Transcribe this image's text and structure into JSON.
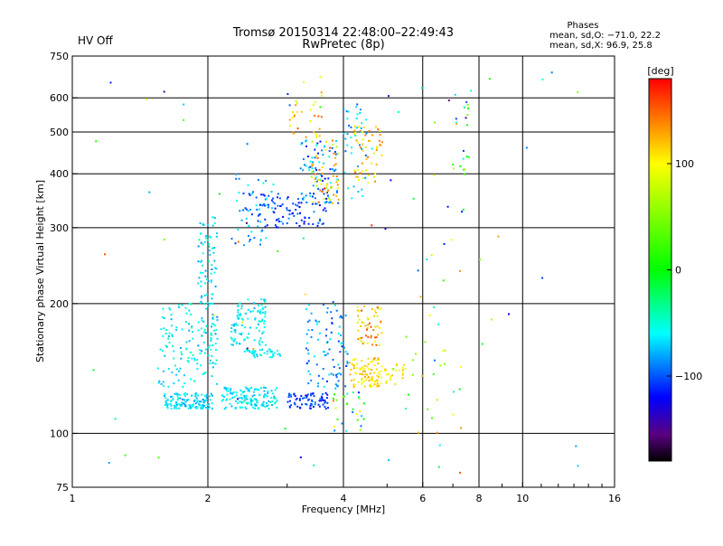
{
  "status": {
    "hv_label": "HV Off",
    "hv_color": "#d00000"
  },
  "header": {
    "title_line1": "Tromsø 20150314 22:48:00–22:49:43",
    "title_line2": "RwPretec (8p)"
  },
  "stats": {
    "heading": "Phases",
    "line_o": "mean, sd,O: −71.0, 22.2",
    "line_x": "mean, sd,X:  96.9, 25.8"
  },
  "colorbar": {
    "unit": "[deg]",
    "range": [
      -180,
      180
    ],
    "ticks": [
      {
        "value": 100,
        "label": "100"
      },
      {
        "value": 0,
        "label": "0"
      },
      {
        "value": -100,
        "label": "−100"
      }
    ],
    "stops": [
      {
        "value": -180,
        "color": "#000000"
      },
      {
        "value": -155,
        "color": "#5a0080"
      },
      {
        "value": -120,
        "color": "#0000ff"
      },
      {
        "value": -60,
        "color": "#00ffff"
      },
      {
        "value": 0,
        "color": "#00ff00"
      },
      {
        "value": 100,
        "color": "#ffff00"
      },
      {
        "value": 140,
        "color": "#ff8000"
      },
      {
        "value": 180,
        "color": "#ff0000"
      }
    ]
  },
  "chart_data": {
    "type": "scatter",
    "xlabel": "Frequency [MHz]",
    "ylabel": "Stationary phase Virtual Height [km]",
    "x_scale": "log",
    "y_scale": "log",
    "xlim": [
      1,
      16
    ],
    "ylim": [
      75,
      750
    ],
    "grid": true,
    "x_ticks": [
      {
        "value": 1,
        "label": "1"
      },
      {
        "value": 2,
        "label": "2"
      },
      {
        "value": 4,
        "label": "4"
      },
      {
        "value": 6,
        "label": "6"
      },
      {
        "value": 8,
        "label": "8"
      },
      {
        "value": 10,
        "label": "10"
      },
      {
        "value": 16,
        "label": "16"
      }
    ],
    "x_gridlines": [
      2,
      4,
      6,
      8,
      10
    ],
    "y_ticks": [
      {
        "value": 75,
        "label": "75"
      },
      {
        "value": 100,
        "label": "100"
      },
      {
        "value": 200,
        "label": "200"
      },
      {
        "value": 300,
        "label": "300"
      },
      {
        "value": 400,
        "label": "400"
      },
      {
        "value": 500,
        "label": "500"
      },
      {
        "value": 600,
        "label": "600"
      },
      {
        "value": 750,
        "label": "750"
      }
    ],
    "y_gridlines": [
      100,
      200,
      300,
      400,
      500,
      600
    ],
    "clusters": [
      {
        "f": [
          1.6,
          2.05
        ],
        "h": [
          114,
          124
        ],
        "phase": [
          -85,
          -50
        ],
        "n": 130,
        "seed": 11
      },
      {
        "f": [
          2.15,
          2.85
        ],
        "h": [
          114,
          128
        ],
        "phase": [
          -80,
          -45
        ],
        "n": 140,
        "seed": 12
      },
      {
        "f": [
          1.55,
          2.1
        ],
        "h": [
          128,
          200
        ],
        "phase": [
          -80,
          -40
        ],
        "n": 120,
        "seed": 13
      },
      {
        "f": [
          1.9,
          2.1
        ],
        "h": [
          150,
          320
        ],
        "phase": [
          -90,
          -40
        ],
        "n": 100,
        "seed": 14
      },
      {
        "f": [
          2.25,
          2.7
        ],
        "h": [
          160,
          205
        ],
        "phase": [
          -80,
          -40
        ],
        "n": 100,
        "seed": 15
      },
      {
        "f": [
          2.4,
          2.9
        ],
        "h": [
          150,
          157
        ],
        "phase": [
          -75,
          -45
        ],
        "n": 40,
        "seed": 16
      },
      {
        "f": [
          2.25,
          2.8
        ],
        "h": [
          270,
          400
        ],
        "phase": [
          -110,
          -50
        ],
        "n": 55,
        "seed": 17
      },
      {
        "f": [
          2.6,
          3.7
        ],
        "h": [
          300,
          360
        ],
        "phase": [
          -125,
          -85
        ],
        "n": 90,
        "seed": 18
      },
      {
        "f": [
          3.2,
          3.9
        ],
        "h": [
          340,
          480
        ],
        "phase": [
          -120,
          -50
        ],
        "n": 80,
        "seed": 19
      },
      {
        "f": [
          3.4,
          3.9
        ],
        "h": [
          340,
          480
        ],
        "phase": [
          60,
          160
        ],
        "n": 55,
        "seed": 20
      },
      {
        "f": [
          3.0,
          3.6
        ],
        "h": [
          480,
          620
        ],
        "phase": [
          80,
          160
        ],
        "n": 30,
        "seed": 21
      },
      {
        "f": [
          4.2,
          4.9
        ],
        "h": [
          380,
          520
        ],
        "phase": [
          80,
          150
        ],
        "n": 55,
        "seed": 22
      },
      {
        "f": [
          4.0,
          4.5
        ],
        "h": [
          350,
          580
        ],
        "phase": [
          -100,
          -50
        ],
        "n": 40,
        "seed": 23
      },
      {
        "f": [
          3.0,
          3.7
        ],
        "h": [
          114,
          124
        ],
        "phase": [
          -125,
          -90
        ],
        "n": 70,
        "seed": 24
      },
      {
        "f": [
          3.3,
          4.1
        ],
        "h": [
          125,
          200
        ],
        "phase": [
          -110,
          -55
        ],
        "n": 95,
        "seed": 25
      },
      {
        "f": [
          4.1,
          4.8
        ],
        "h": [
          128,
          150
        ],
        "phase": [
          90,
          130
        ],
        "n": 85,
        "seed": 26
      },
      {
        "f": [
          4.3,
          4.9
        ],
        "h": [
          160,
          200
        ],
        "phase": [
          80,
          160
        ],
        "n": 55,
        "seed": 27
      },
      {
        "f": [
          4.8,
          5.5
        ],
        "h": [
          130,
          145
        ],
        "phase": [
          90,
          120
        ],
        "n": 30,
        "seed": 28
      },
      {
        "f": [
          3.8,
          4.5
        ],
        "h": [
          100,
          125
        ],
        "phase": [
          -120,
          140
        ],
        "n": 30,
        "seed": 29
      },
      {
        "f": [
          5.5,
          7.4
        ],
        "h": [
          100,
          300
        ],
        "phase": [
          -120,
          150
        ],
        "n": 30,
        "seed": 30
      },
      {
        "f": [
          7.0,
          7.6
        ],
        "h": [
          380,
          640
        ],
        "phase": [
          -110,
          140
        ],
        "n": 20,
        "seed": 31
      },
      {
        "f": [
          1.05,
          13.5
        ],
        "h": [
          80,
          700
        ],
        "phase": [
          -160,
          170
        ],
        "n": 80,
        "seed": 32
      }
    ]
  }
}
